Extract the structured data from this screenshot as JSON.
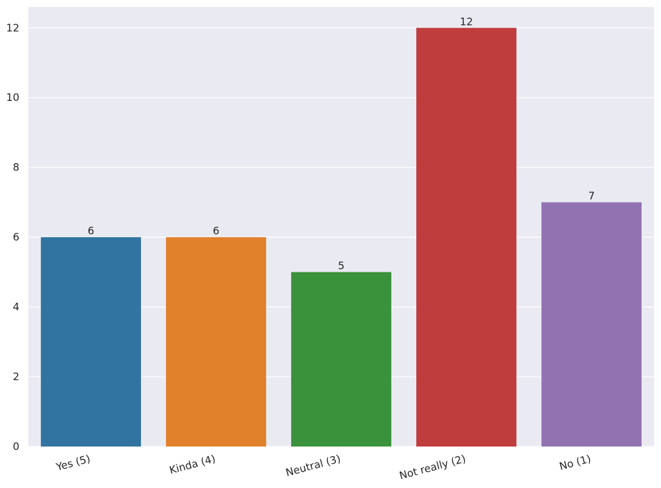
{
  "chart_data": {
    "type": "bar",
    "categories": [
      "Yes (5)",
      "Kinda (4)",
      "Neutral (3)",
      "Not really (2)",
      "No (1)"
    ],
    "values": [
      6,
      6,
      5,
      12,
      7
    ],
    "colors": [
      "#3274a1",
      "#e1812c",
      "#3a923a",
      "#c03d3e",
      "#9372b2"
    ],
    "ylim": [
      0,
      12.6
    ],
    "yticks": [
      0,
      2,
      4,
      6,
      8,
      10,
      12
    ],
    "grid": true
  }
}
